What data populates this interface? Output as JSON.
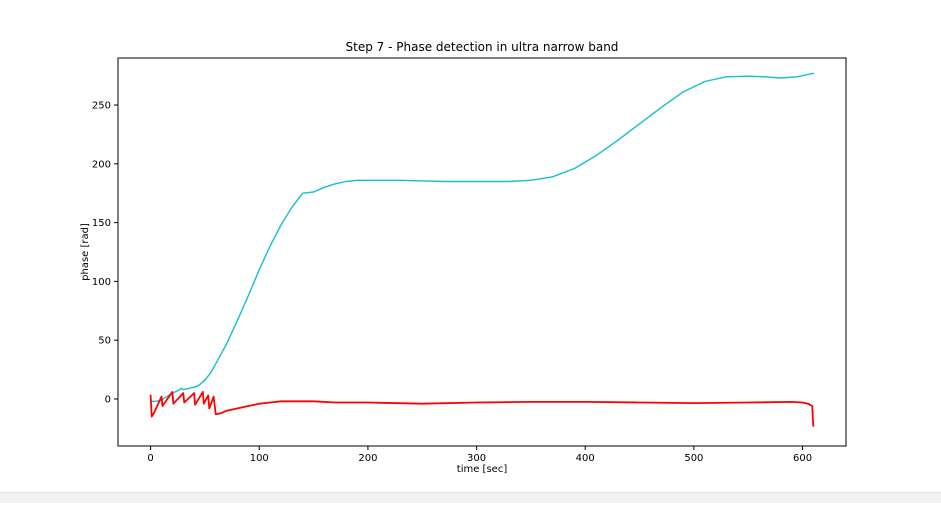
{
  "chart_data": {
    "type": "line",
    "title": "Step 7 - Phase detection in ultra narrow band",
    "xlabel": "time [sec]",
    "ylabel": "phase [rad]",
    "xlim": [
      -30,
      640
    ],
    "ylim": [
      -40,
      290
    ],
    "xticks": [
      0,
      100,
      200,
      300,
      400,
      500,
      600
    ],
    "yticks": [
      0,
      50,
      100,
      150,
      200,
      250
    ],
    "grid": false,
    "legend": "none",
    "series": [
      {
        "color": "#17becf",
        "x": [
          0,
          5,
          10,
          15,
          20,
          25,
          28,
          30,
          35,
          40,
          45,
          50,
          55,
          60,
          70,
          80,
          90,
          100,
          110,
          120,
          130,
          140,
          150,
          160,
          170,
          180,
          190,
          200,
          210,
          220,
          230,
          250,
          270,
          300,
          330,
          350,
          370,
          390,
          410,
          430,
          450,
          470,
          490,
          510,
          530,
          550,
          565,
          580,
          595,
          610
        ],
        "y": [
          -2,
          -2,
          -1,
          2,
          5,
          7,
          9,
          8,
          9,
          10,
          12,
          16,
          22,
          30,
          47,
          67,
          88,
          110,
          130,
          148,
          163,
          175,
          176,
          180,
          183,
          185,
          186,
          186,
          186,
          186,
          186,
          185.5,
          185,
          185,
          185,
          186,
          189,
          196,
          207,
          220,
          234,
          248,
          261,
          270,
          274,
          274.5,
          274,
          273,
          274,
          277
        ]
      },
      {
        "color": "#ff0000",
        "x": [
          0,
          1,
          3,
          10,
          11,
          20,
          21,
          30,
          31,
          40,
          41,
          48,
          49,
          53,
          54,
          58,
          60,
          65,
          70,
          80,
          90,
          100,
          110,
          120,
          130,
          140,
          150,
          170,
          200,
          250,
          300,
          350,
          400,
          450,
          500,
          550,
          590,
          600,
          605,
          609,
          609.5,
          610
        ],
        "y": [
          3,
          -15,
          -12,
          2,
          -6,
          6,
          -4,
          5,
          -3,
          5,
          -5,
          6,
          -4,
          3,
          -8,
          2,
          -13,
          -12,
          -10,
          -8,
          -6,
          -4,
          -3,
          -2,
          -2,
          -2,
          -2,
          -3,
          -3,
          -4,
          -3,
          -2.5,
          -2.5,
          -3,
          -3.5,
          -3,
          -2.5,
          -3,
          -4,
          -6,
          -18,
          -23
        ]
      }
    ]
  }
}
